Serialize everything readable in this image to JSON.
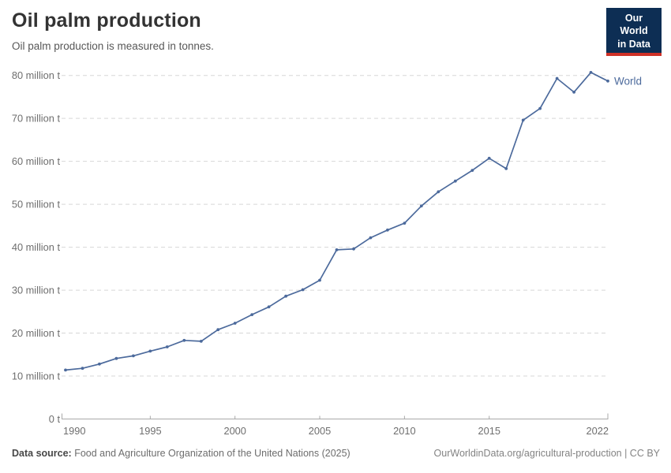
{
  "header": {
    "title": "Oil palm production",
    "subtitle": "Oil palm production is measured in tonnes.",
    "logo": {
      "line1": "Our World",
      "line2": "in Data",
      "bg_color": "#0d2e54",
      "accent_color": "#cf3127"
    }
  },
  "chart_data": {
    "type": "line",
    "title": "Oil palm production",
    "unit": "tonnes",
    "xlabel": "",
    "ylabel": "million tonnes",
    "xlim": [
      1990,
      2022
    ],
    "ylim_million_t": [
      0,
      80
    ],
    "grid": "horizontal-dashed",
    "legend_position": "end-of-line-label",
    "x_ticks": [
      1990,
      1995,
      2000,
      2005,
      2010,
      2015,
      2022
    ],
    "y_ticks": [
      {
        "value": 0,
        "label": "0 t"
      },
      {
        "value": 10,
        "label": "10 million t"
      },
      {
        "value": 20,
        "label": "20 million t"
      },
      {
        "value": 30,
        "label": "30 million t"
      },
      {
        "value": 40,
        "label": "40 million t"
      },
      {
        "value": 50,
        "label": "50 million t"
      },
      {
        "value": 60,
        "label": "60 million t"
      },
      {
        "value": 70,
        "label": "70 million t"
      },
      {
        "value": 80,
        "label": "80 million t"
      }
    ],
    "series": [
      {
        "name": "World",
        "color": "#4c6a9c",
        "years": [
          1990,
          1991,
          1992,
          1993,
          1994,
          1995,
          1996,
          1997,
          1998,
          1999,
          2000,
          2001,
          2002,
          2003,
          2004,
          2005,
          2006,
          2007,
          2008,
          2009,
          2010,
          2011,
          2012,
          2013,
          2014,
          2015,
          2016,
          2017,
          2018,
          2019,
          2020,
          2021,
          2022
        ],
        "values_million_t": [
          11.4,
          11.8,
          12.8,
          14.1,
          14.7,
          15.8,
          16.8,
          18.3,
          18.1,
          20.8,
          22.3,
          24.3,
          26.1,
          28.6,
          30.1,
          32.3,
          39.4,
          39.6,
          42.2,
          44.0,
          45.6,
          49.6,
          52.9,
          55.4,
          57.9,
          60.7,
          58.3,
          69.6,
          72.3,
          79.3,
          76.1,
          80.7,
          78.7
        ]
      }
    ]
  },
  "footer": {
    "source_label": "Data source:",
    "source_text": " Food and Agriculture Organization of the United Nations (2025)",
    "link_text": "OurWorldinData.org/agricultural-production | CC BY"
  }
}
